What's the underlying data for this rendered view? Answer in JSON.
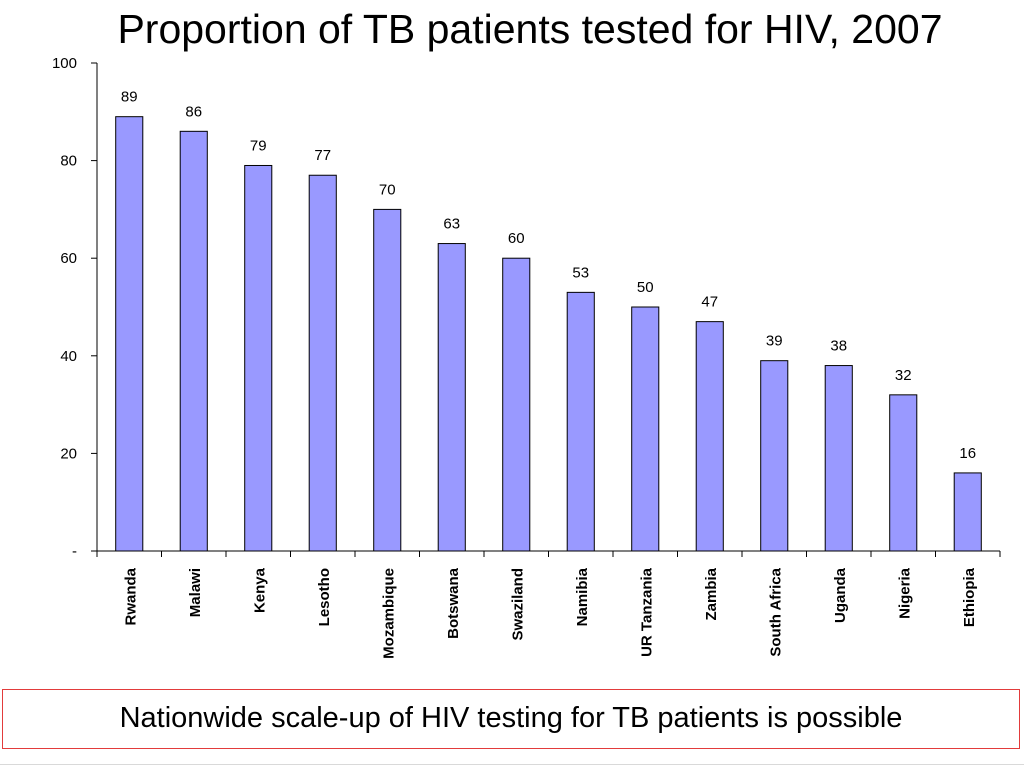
{
  "chart_data": {
    "type": "bar",
    "title": "Proportion of TB patients tested for HIV, 2007",
    "xlabel": "",
    "ylabel": "",
    "categories": [
      "Rwanda",
      "Malawi",
      "Kenya",
      "Lesotho",
      "Mozambique",
      "Botswana",
      "Swaziland",
      "Namibia",
      "UR Tanzania",
      "Zambia",
      "South Africa",
      "Uganda",
      "Nigeria",
      "Ethiopia"
    ],
    "values": [
      89,
      86,
      79,
      77,
      70,
      63,
      60,
      53,
      50,
      47,
      39,
      38,
      32,
      16
    ],
    "ylim": [
      0,
      100
    ],
    "yticks": [
      "-",
      "20",
      "40",
      "60",
      "80",
      "100"
    ],
    "grid": false,
    "legend": "none",
    "bar_color": "#9999ff",
    "bar_edge_color": "#000000"
  },
  "caption": "Nationwide scale-up of HIV testing for TB patients is possible",
  "colors": {
    "caption_border": "#e23b3b"
  }
}
